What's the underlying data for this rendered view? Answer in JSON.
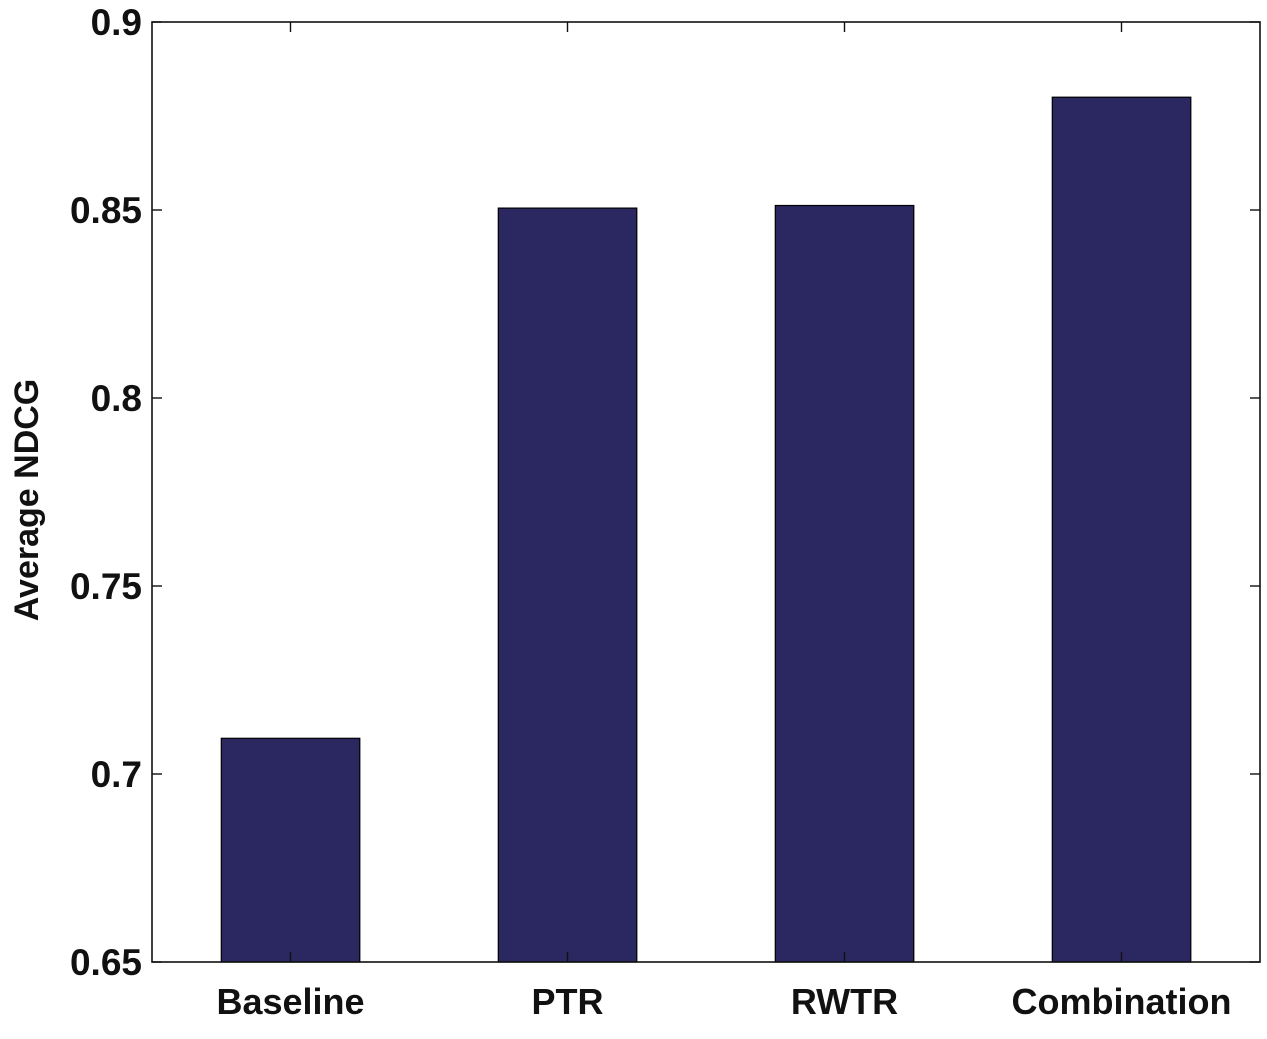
{
  "chart_data": {
    "type": "bar",
    "title": "",
    "xlabel": "",
    "ylabel": "Average NDCG",
    "categories": [
      "Baseline",
      "PTR",
      "RWTR",
      "Combination"
    ],
    "values": [
      0.7095,
      0.8505,
      0.8512,
      0.88
    ],
    "ylim": [
      0.65,
      0.9
    ],
    "yticks": [
      "0.65",
      "0.7",
      "0.75",
      "0.8",
      "0.85",
      "0.9"
    ],
    "grid": false,
    "legend": "none",
    "bar_color": "#2b2760",
    "axis_color": "#111111"
  }
}
